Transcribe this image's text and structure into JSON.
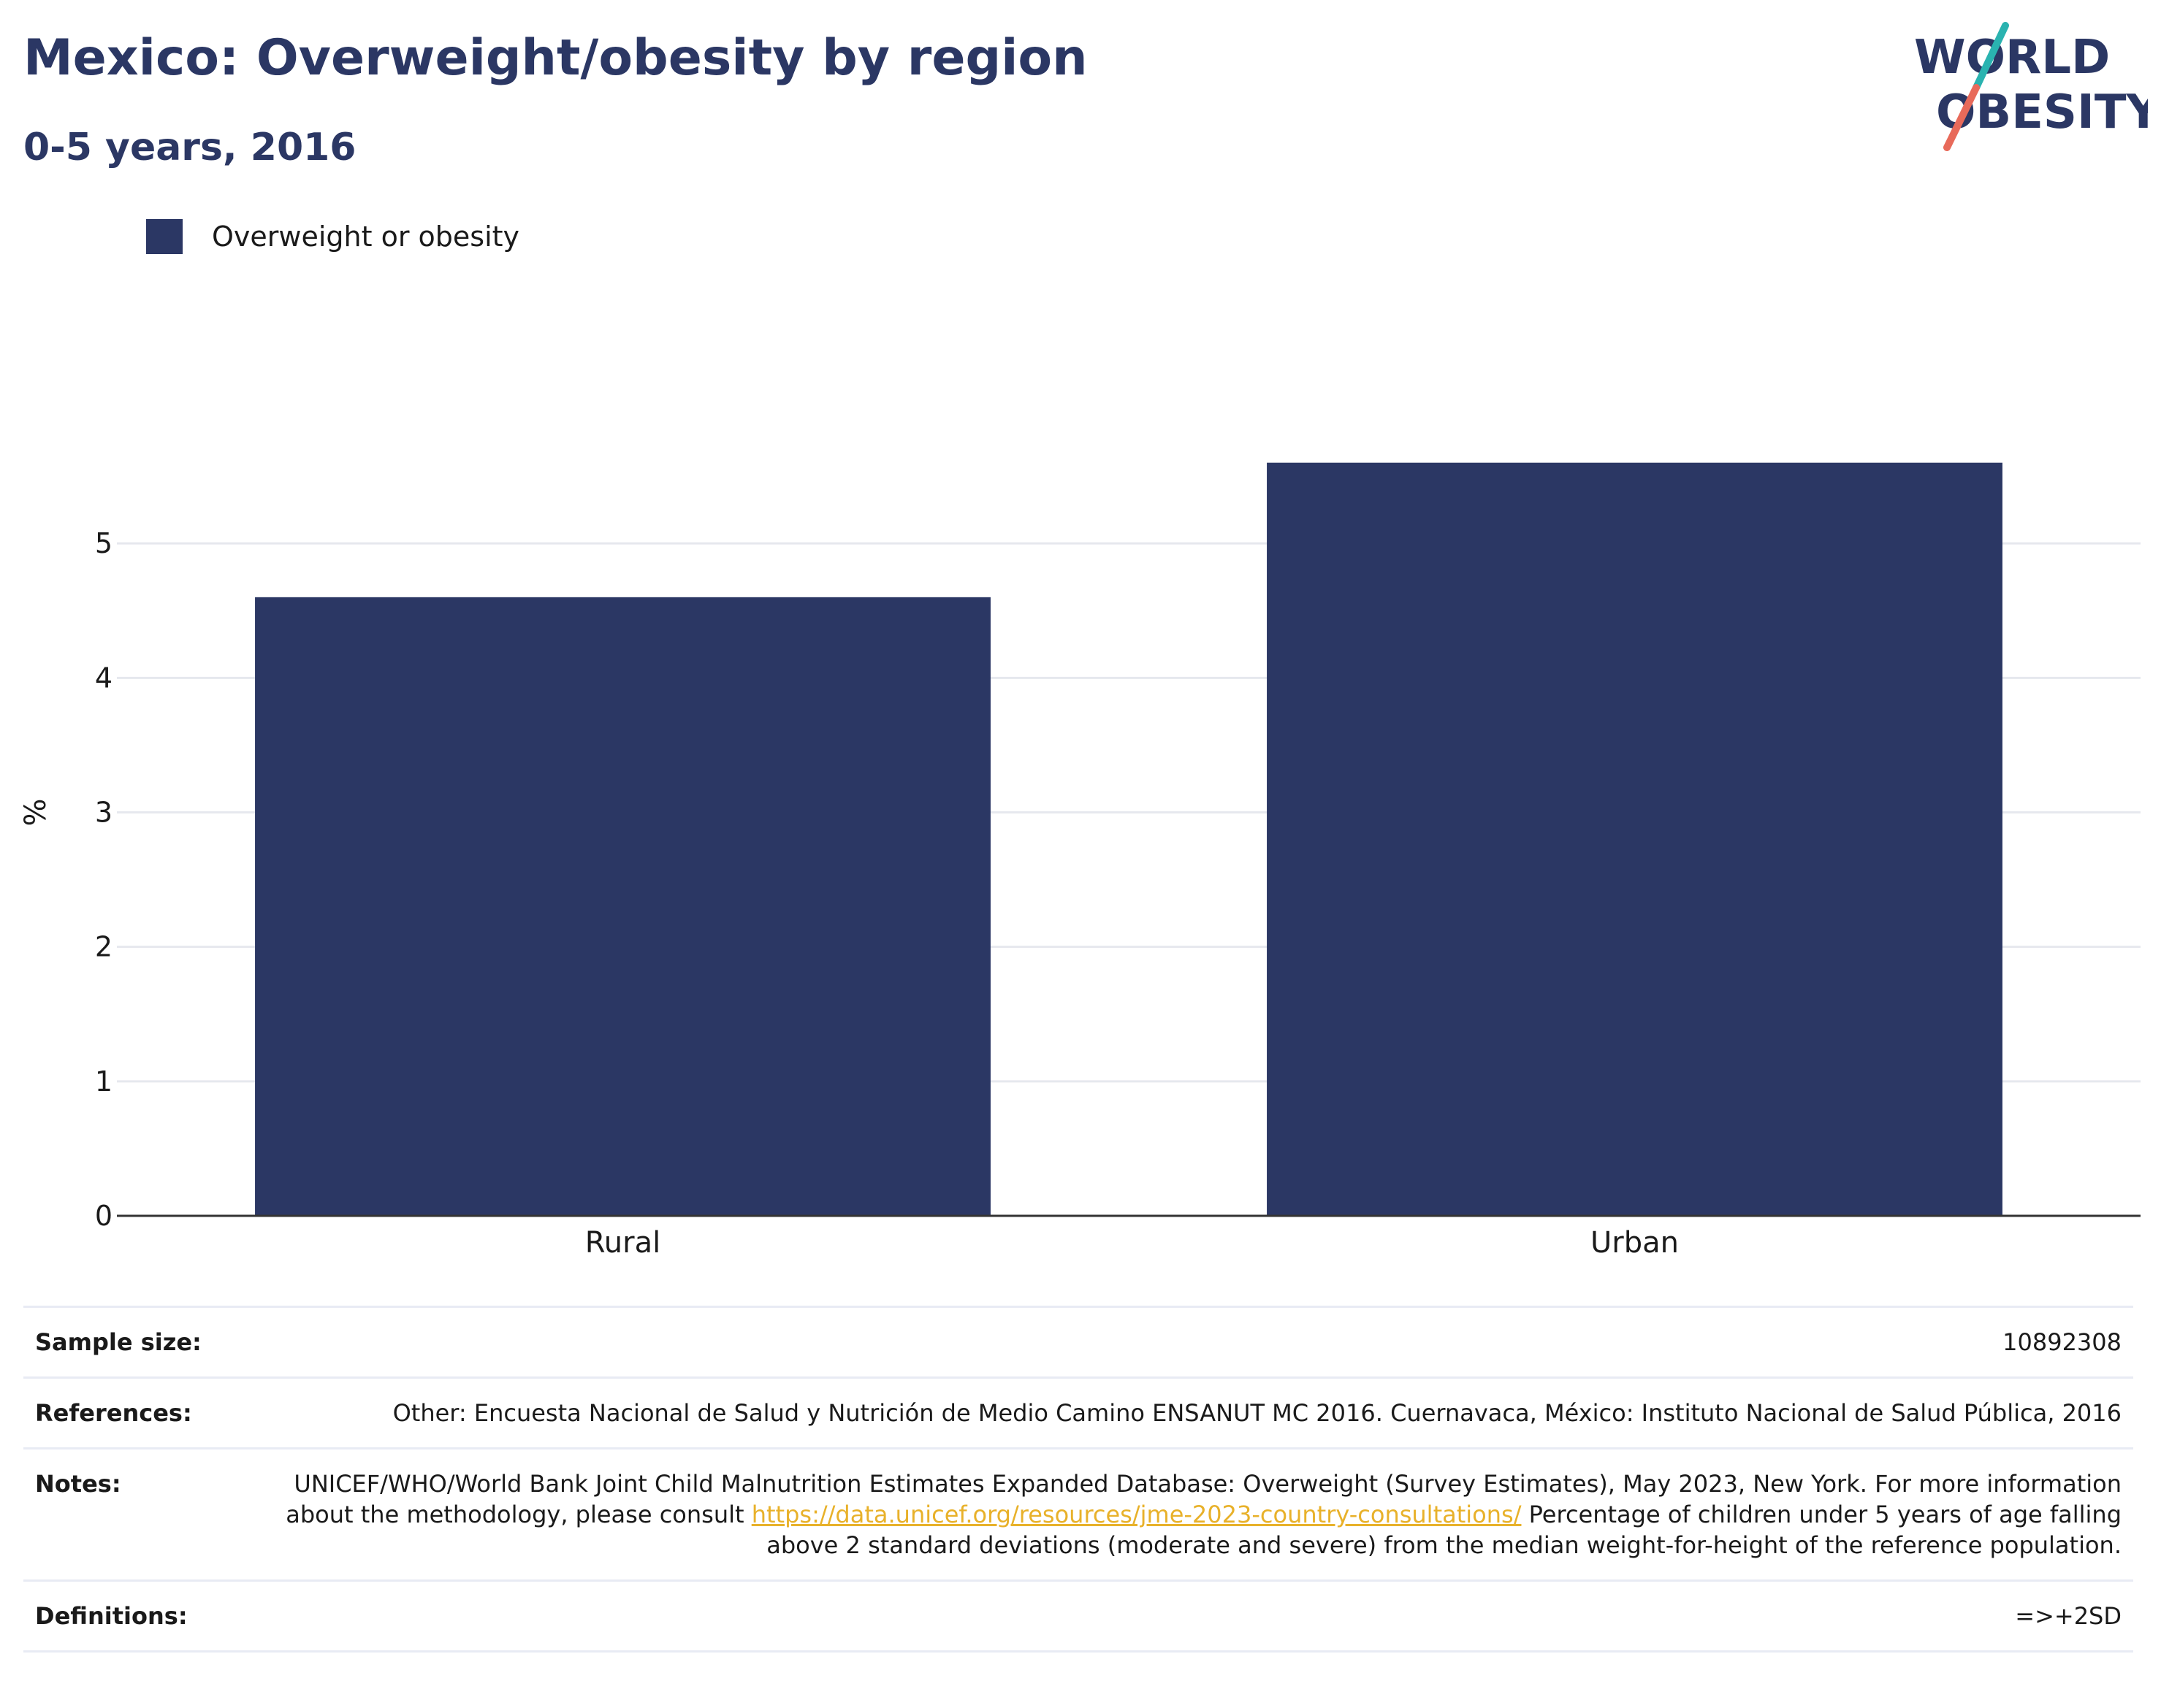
{
  "header": {
    "title": "Mexico: Overweight/obesity by region",
    "subtitle": "0-5 years, 2016"
  },
  "logo": {
    "line1": "WORLD",
    "line2": "OBESITY"
  },
  "legend": {
    "label": "Overweight or obesity",
    "color": "#2b3764"
  },
  "chart_data": {
    "type": "bar",
    "title": "Mexico: Overweight/obesity by region",
    "subtitle": "0-5 years, 2016",
    "categories": [
      "Rural",
      "Urban"
    ],
    "series": [
      {
        "name": "Overweight or obesity",
        "values": [
          4.6,
          5.6
        ],
        "color": "#2b3764"
      }
    ],
    "ylabel": "%",
    "ylim": [
      0,
      6
    ],
    "yticks": [
      0,
      1,
      2,
      3,
      4,
      5
    ],
    "grid": true,
    "legend_position": "top-left"
  },
  "info": {
    "sample_size": {
      "label": "Sample size:",
      "value": "10892308"
    },
    "references": {
      "label": "References:",
      "value": "Other: Encuesta Nacional de Salud y Nutrición de Medio Camino ENSANUT MC 2016. Cuernavaca, México: Instituto Nacional de Salud Pública, 2016"
    },
    "notes": {
      "label": "Notes:",
      "text_before": "UNICEF/WHO/World Bank Joint Child Malnutrition Estimates Expanded Database: Overweight (Survey Estimates), May 2023, New York. For more information about the methodology, please consult ",
      "link": "https://data.unicef.org/resources/jme-2023-country-consultations/",
      "text_after": " Percentage of children under 5 years of age falling above 2 standard deviations (moderate and severe) from the median weight-for-height of the reference population."
    },
    "definitions": {
      "label": "Definitions:",
      "value": "=>+2SD"
    }
  }
}
